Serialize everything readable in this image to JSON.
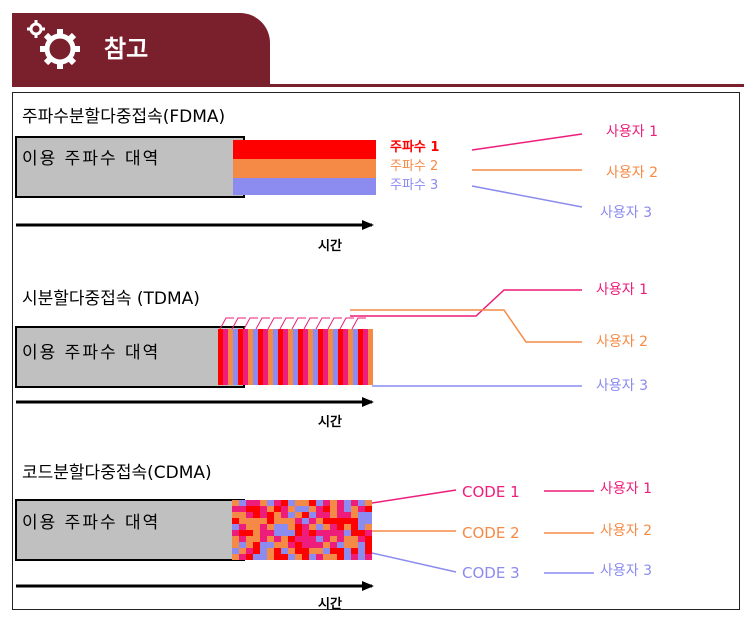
{
  "header": {
    "title": "참고",
    "icon": "gear-icon"
  },
  "sections": [
    {
      "title": "주파수분할다중접속(FDMA)",
      "band_label": "이용 주파수 대역",
      "time_label": "시간",
      "channels": [
        "주파수 1",
        "주파수 2",
        "주파수 3"
      ],
      "users": [
        "사용자 1",
        "사용자 2",
        "사용자 3"
      ]
    },
    {
      "title": "시분할다중접속 (TDMA)",
      "band_label": "이용 주파수 대역",
      "time_label": "시간",
      "users": [
        "사용자 1",
        "사용자 2",
        "사용자 3"
      ]
    },
    {
      "title": "코드분할다중접속(CDMA)",
      "band_label": "이용 주파수 대역",
      "time_label": "시간",
      "codes": [
        "CODE 1",
        "CODE 2",
        "CODE 3"
      ],
      "users": [
        "사용자 1",
        "사용자 2",
        "사용자 3"
      ]
    }
  ],
  "colors": {
    "header": "#7a1f2c",
    "user1": "#ee1c7a",
    "user2": "#f58a46",
    "user3": "#8b8bf0",
    "red": "#ff0000",
    "band": "#c0c0c0"
  }
}
